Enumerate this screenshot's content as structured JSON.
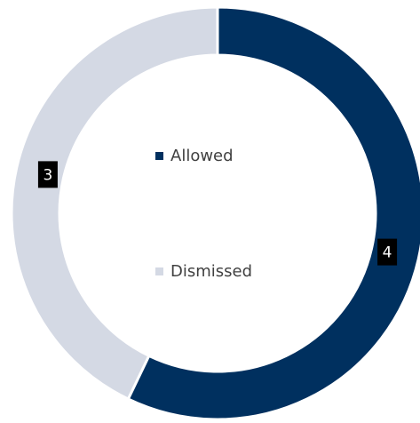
{
  "chart_data": {
    "type": "donut",
    "categories": [
      "Allowed",
      "Dismissed"
    ],
    "values": [
      4,
      3
    ],
    "colors": [
      "#00305f",
      "#d4d9e4"
    ]
  }
}
